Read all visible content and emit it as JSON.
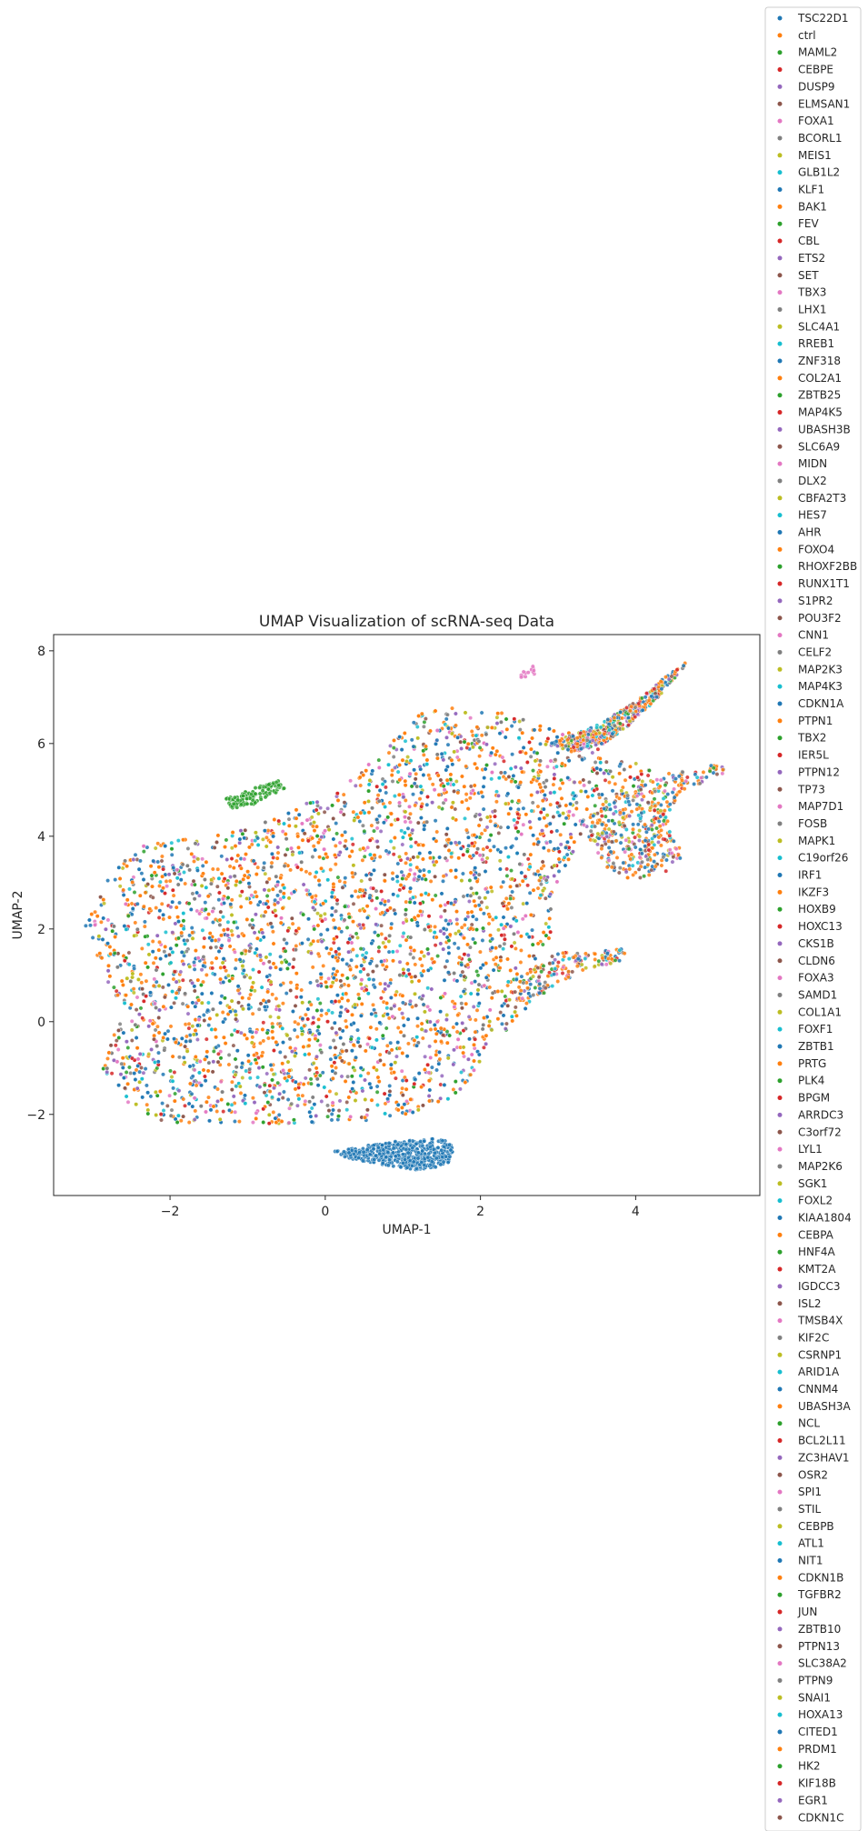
{
  "chart_data": {
    "type": "scatter",
    "title": "UMAP Visualization of scRNA-seq Data",
    "xlabel": "UMAP-1",
    "ylabel": "UMAP-2",
    "xlim": [
      -3.5,
      5.6
    ],
    "ylim": [
      -3.75,
      8.35
    ],
    "xticks": [
      -2,
      0,
      2,
      4
    ],
    "yticks": [
      -2,
      0,
      2,
      4,
      6,
      8
    ],
    "xtick_labels": [
      "−2",
      "0",
      "2",
      "4"
    ],
    "ytick_labels": [
      "−2",
      "0",
      "2",
      "4",
      "6",
      "8"
    ],
    "grid": false,
    "legend_placement": "outside-right",
    "palette": [
      "#1f77b4",
      "#ff7f0e",
      "#2ca02c",
      "#d62728",
      "#9467bd",
      "#8c564b",
      "#e377c2",
      "#7f7f7f",
      "#bcbd22",
      "#17becf"
    ],
    "series": [
      {
        "name": "TSC22D1"
      },
      {
        "name": "ctrl"
      },
      {
        "name": "MAML2"
      },
      {
        "name": "CEBPE"
      },
      {
        "name": "DUSP9"
      },
      {
        "name": "ELMSAN1"
      },
      {
        "name": "FOXA1"
      },
      {
        "name": "BCORL1"
      },
      {
        "name": "MEIS1"
      },
      {
        "name": "GLB1L2"
      },
      {
        "name": "KLF1"
      },
      {
        "name": "BAK1"
      },
      {
        "name": "FEV"
      },
      {
        "name": "CBL"
      },
      {
        "name": "ETS2"
      },
      {
        "name": "SET"
      },
      {
        "name": "TBX3"
      },
      {
        "name": "LHX1"
      },
      {
        "name": "SLC4A1"
      },
      {
        "name": "RREB1"
      },
      {
        "name": "ZNF318"
      },
      {
        "name": "COL2A1"
      },
      {
        "name": "ZBTB25"
      },
      {
        "name": "MAP4K5"
      },
      {
        "name": "UBASH3B"
      },
      {
        "name": "SLC6A9"
      },
      {
        "name": "MIDN"
      },
      {
        "name": "DLX2"
      },
      {
        "name": "CBFA2T3"
      },
      {
        "name": "HES7"
      },
      {
        "name": "AHR"
      },
      {
        "name": "FOXO4"
      },
      {
        "name": "RHOXF2BB"
      },
      {
        "name": "RUNX1T1"
      },
      {
        "name": "S1PR2"
      },
      {
        "name": "POU3F2"
      },
      {
        "name": "CNN1"
      },
      {
        "name": "CELF2"
      },
      {
        "name": "MAP2K3"
      },
      {
        "name": "MAP4K3"
      },
      {
        "name": "CDKN1A"
      },
      {
        "name": "PTPN1"
      },
      {
        "name": "TBX2"
      },
      {
        "name": "IER5L"
      },
      {
        "name": "PTPN12"
      },
      {
        "name": "TP73"
      },
      {
        "name": "MAP7D1"
      },
      {
        "name": "FOSB"
      },
      {
        "name": "MAPK1"
      },
      {
        "name": "C19orf26"
      },
      {
        "name": "IRF1"
      },
      {
        "name": "IKZF3"
      },
      {
        "name": "HOXB9"
      },
      {
        "name": "HOXC13"
      },
      {
        "name": "CKS1B"
      },
      {
        "name": "CLDN6"
      },
      {
        "name": "FOXA3"
      },
      {
        "name": "SAMD1"
      },
      {
        "name": "COL1A1"
      },
      {
        "name": "FOXF1"
      },
      {
        "name": "ZBTB1"
      },
      {
        "name": "PRTG"
      },
      {
        "name": "PLK4"
      },
      {
        "name": "BPGM"
      },
      {
        "name": "ARRDC3"
      },
      {
        "name": "C3orf72"
      },
      {
        "name": "LYL1"
      },
      {
        "name": "MAP2K6"
      },
      {
        "name": "SGK1"
      },
      {
        "name": "FOXL2"
      },
      {
        "name": "KIAA1804"
      },
      {
        "name": "CEBPA"
      },
      {
        "name": "HNF4A"
      },
      {
        "name": "KMT2A"
      },
      {
        "name": "IGDCC3"
      },
      {
        "name": "ISL2"
      },
      {
        "name": "TMSB4X"
      },
      {
        "name": "KIF2C"
      },
      {
        "name": "CSRNP1"
      },
      {
        "name": "ARID1A"
      },
      {
        "name": "CNNM4"
      },
      {
        "name": "UBASH3A"
      },
      {
        "name": "NCL"
      },
      {
        "name": "BCL2L11"
      },
      {
        "name": "ZC3HAV1"
      },
      {
        "name": "OSR2"
      },
      {
        "name": "SPI1"
      },
      {
        "name": "STIL"
      },
      {
        "name": "CEBPB"
      },
      {
        "name": "ATL1"
      },
      {
        "name": "NIT1"
      },
      {
        "name": "CDKN1B"
      },
      {
        "name": "TGFBR2"
      },
      {
        "name": "JUN"
      },
      {
        "name": "ZBTB10"
      },
      {
        "name": "PTPN13"
      },
      {
        "name": "SLC38A2"
      },
      {
        "name": "PTPN9"
      },
      {
        "name": "SNAI1"
      },
      {
        "name": "HOXA13"
      },
      {
        "name": "CITED1"
      },
      {
        "name": "PRDM1"
      },
      {
        "name": "HK2"
      },
      {
        "name": "KIF18B"
      },
      {
        "name": "EGR1"
      },
      {
        "name": "CDKN1C"
      }
    ],
    "clusters": [
      {
        "label": "main-body",
        "series_index": -1,
        "outline": [
          [
            -3.1,
            2.1
          ],
          [
            -2.8,
            3.1
          ],
          [
            -2.4,
            3.8
          ],
          [
            -1.5,
            4.0
          ],
          [
            -0.8,
            4.3
          ],
          [
            0.0,
            4.9
          ],
          [
            0.7,
            5.8
          ],
          [
            1.3,
            6.8
          ],
          [
            2.2,
            6.7
          ],
          [
            3.2,
            6.2
          ],
          [
            3.8,
            5.8
          ],
          [
            4.3,
            5.4
          ],
          [
            3.9,
            4.9
          ],
          [
            3.4,
            4.6
          ],
          [
            3.2,
            3.6
          ],
          [
            3.0,
            2.8
          ],
          [
            2.9,
            1.8
          ],
          [
            2.7,
            1.1
          ],
          [
            2.6,
            0.0
          ],
          [
            2.1,
            -0.6
          ],
          [
            1.7,
            -1.6
          ],
          [
            1.0,
            -2.1
          ],
          [
            0.0,
            -2.2
          ],
          [
            -1.0,
            -2.2
          ],
          [
            -2.0,
            -2.2
          ],
          [
            -2.6,
            -1.8
          ],
          [
            -2.9,
            -1.0
          ],
          [
            -2.6,
            0.2
          ],
          [
            -2.9,
            1.2
          ]
        ],
        "n": 5200
      },
      {
        "label": "upper-arm",
        "series_index": -1,
        "outline": [
          [
            2.9,
            6.0
          ],
          [
            3.5,
            6.4
          ],
          [
            4.0,
            6.9
          ],
          [
            4.5,
            7.6
          ],
          [
            4.7,
            7.8
          ],
          [
            4.4,
            7.2
          ],
          [
            4.0,
            6.5
          ],
          [
            3.6,
            6.0
          ],
          [
            3.2,
            5.8
          ]
        ],
        "n": 420
      },
      {
        "label": "right-arm",
        "series_index": -1,
        "outline": [
          [
            3.3,
            4.3
          ],
          [
            3.6,
            3.3
          ],
          [
            4.0,
            3.0
          ],
          [
            4.5,
            3.3
          ],
          [
            4.6,
            3.6
          ],
          [
            4.4,
            4.4
          ],
          [
            4.6,
            5.0
          ],
          [
            5.1,
            5.3
          ],
          [
            5.2,
            5.6
          ],
          [
            4.6,
            5.4
          ],
          [
            4.2,
            5.3
          ],
          [
            3.8,
            5.0
          ],
          [
            3.5,
            4.6
          ]
        ],
        "n": 460
      },
      {
        "label": "lower-right-lobe",
        "series_index": -1,
        "outline": [
          [
            2.6,
            0.3
          ],
          [
            2.9,
            0.7
          ],
          [
            3.3,
            1.1
          ],
          [
            3.8,
            1.3
          ],
          [
            3.9,
            1.6
          ],
          [
            3.4,
            1.5
          ],
          [
            3.0,
            1.5
          ],
          [
            2.6,
            1.1
          ],
          [
            2.4,
            0.6
          ]
        ],
        "n": 160
      },
      {
        "label": "green-cluster",
        "series_index": 2,
        "outline": [
          [
            -1.3,
            4.8
          ],
          [
            -1.0,
            5.0
          ],
          [
            -0.6,
            5.2
          ],
          [
            -0.5,
            5.0
          ],
          [
            -0.9,
            4.7
          ],
          [
            -1.2,
            4.6
          ]
        ],
        "n": 120
      },
      {
        "label": "blue-cluster",
        "series_index": 0,
        "outline": [
          [
            0.1,
            -2.8
          ],
          [
            0.8,
            -2.6
          ],
          [
            1.5,
            -2.5
          ],
          [
            1.65,
            -2.7
          ],
          [
            1.6,
            -3.1
          ],
          [
            1.2,
            -3.2
          ],
          [
            0.8,
            -3.1
          ],
          [
            0.3,
            -2.95
          ]
        ],
        "n": 520
      },
      {
        "label": "small-top",
        "series_index": 6,
        "outline": [
          [
            2.5,
            7.5
          ],
          [
            2.7,
            7.7
          ],
          [
            2.7,
            7.5
          ],
          [
            2.5,
            7.4
          ]
        ],
        "n": 14
      }
    ]
  }
}
